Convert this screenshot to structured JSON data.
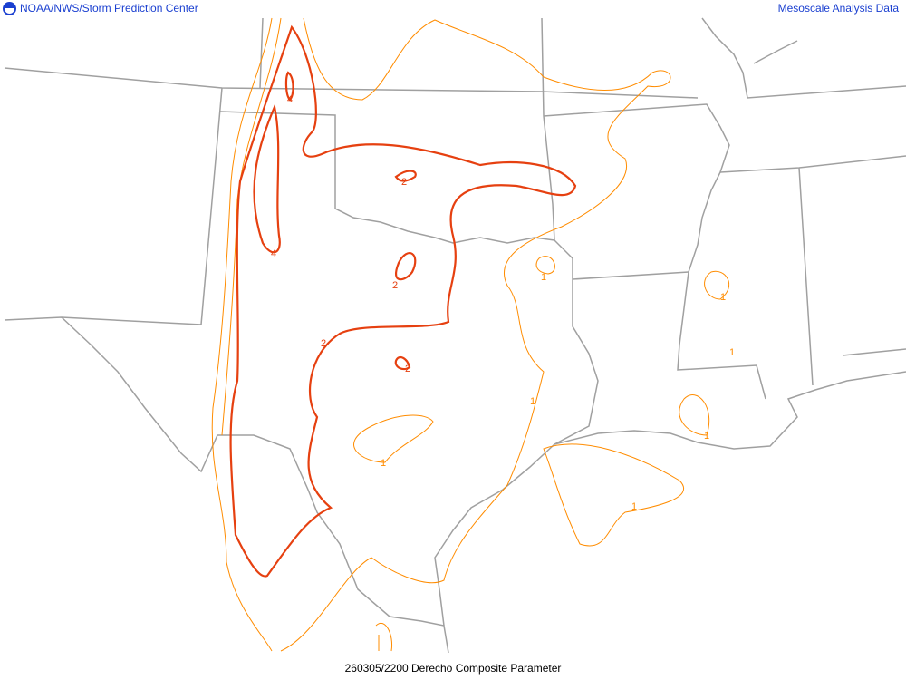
{
  "header": {
    "left_title": "NOAA/NWS/Storm Prediction Center",
    "right_title": "Mesoscale Analysis Data",
    "logo": "noaa-logo"
  },
  "footer": {
    "caption": "260305/2200 Derecho Composite Parameter"
  },
  "colors": {
    "header_text": "#1a3fd0",
    "borders": "#a0a0a0",
    "contour_low": "#ff8c00",
    "contour_high": "#e64010"
  },
  "contour_labels": {
    "a": "4",
    "b": "4",
    "c": "2",
    "d": "2",
    "e": "2",
    "f": "2",
    "g": "1",
    "h": "1",
    "i": "1",
    "j": "1",
    "k": "1",
    "l": "1",
    "m": "1"
  }
}
